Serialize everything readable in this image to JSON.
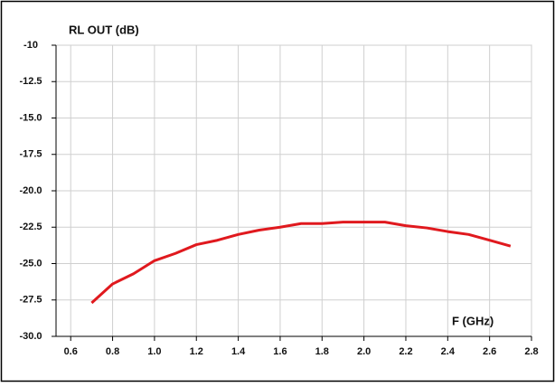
{
  "chart_data": {
    "type": "line",
    "y_label": "RL OUT (dB)",
    "x_label": "F (GHz)",
    "x": [
      0.7,
      0.8,
      0.9,
      1.0,
      1.1,
      1.2,
      1.3,
      1.4,
      1.5,
      1.6,
      1.7,
      1.8,
      1.9,
      2.0,
      2.1,
      2.2,
      2.3,
      2.4,
      2.5,
      2.6,
      2.7
    ],
    "series": [
      {
        "name": "RL OUT",
        "color": "#e0191e",
        "values": [
          -27.7,
          -26.4,
          -25.7,
          -24.8,
          -24.3,
          -23.7,
          -23.4,
          -23.0,
          -22.7,
          -22.5,
          -22.25,
          -22.25,
          -22.15,
          -22.15,
          -22.15,
          -22.4,
          -22.55,
          -22.8,
          -23.0,
          -23.4,
          -23.8
        ]
      }
    ],
    "xlim": [
      0.53,
      2.8
    ],
    "xticks": [
      0.6,
      0.8,
      {
        "value": 1.0,
        "label": "1.0"
      },
      1.2,
      1.4,
      1.6,
      1.8,
      {
        "value": 2.0,
        "label": "2.0"
      },
      2.2,
      2.4,
      2.6,
      2.8
    ],
    "ylim": [
      -30,
      -10
    ],
    "yticks": [
      {
        "value": -30,
        "label": "-30.0"
      },
      -27.5,
      {
        "value": -25,
        "label": "-25.0"
      },
      -22.5,
      {
        "value": -20,
        "label": "-20.0"
      },
      -17.5,
      {
        "value": -15,
        "label": "-15.0"
      },
      -12.5,
      -10
    ],
    "grid": true
  }
}
